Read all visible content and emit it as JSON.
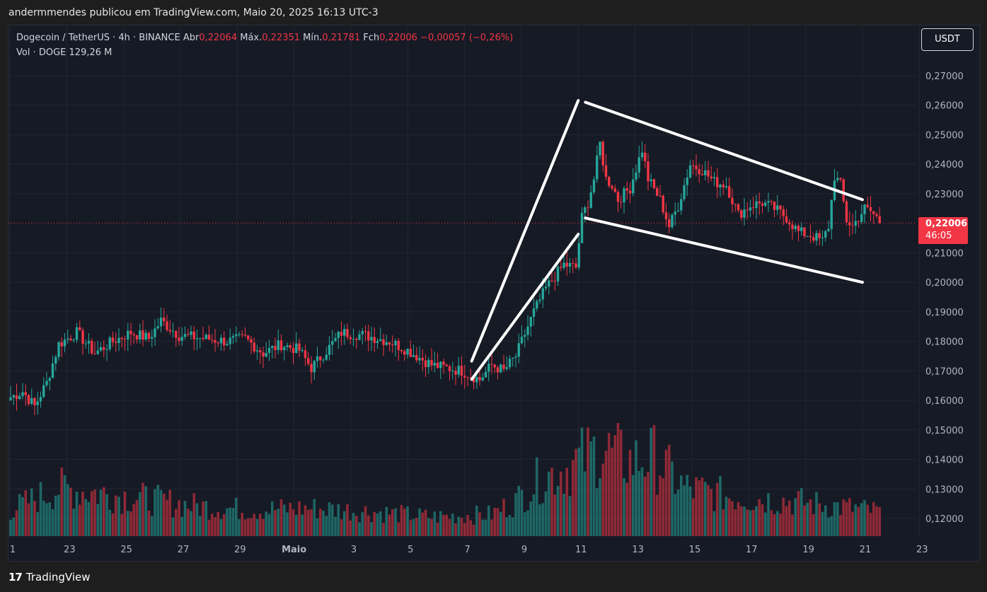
{
  "header": {
    "published": "andermmendes publicou em TradingView.com, Maio 20, 2025 16:13 UTC-3"
  },
  "legend": {
    "symbol": "Dogecoin / TetherUS · 4h · BINANCE",
    "open_label": "Abr",
    "open": "0,22064",
    "high_label": "Máx.",
    "high": "0,22351",
    "low_label": "Mín.",
    "low": "0,21781",
    "close_label": "Fch",
    "close": "0,22006",
    "change": "−0,00057 (−0,26%)",
    "volume_label": "Vol · DOGE",
    "volume": "129,26 M"
  },
  "currency_button": "USDT",
  "last_price": {
    "price": "0,22006",
    "countdown": "46:05"
  },
  "footer": {
    "logo": "17",
    "brand": "TradingView"
  },
  "colors": {
    "up": "#26a69a",
    "down": "#f23645",
    "background": "#161a25",
    "grid": "#232632",
    "drawing": "#ffffff"
  },
  "chart_data": {
    "type": "candlestick",
    "y_ticks": [
      "0,27000",
      "0,26000",
      "0,25000",
      "0,24000",
      "0,23000",
      "0,21000",
      "0,20000",
      "0,19000",
      "0,18000",
      "0,17000",
      "0,16000",
      "0,15000",
      "0,14000",
      "0,13000",
      "0,12000"
    ],
    "x_ticks": [
      "1",
      "23",
      "25",
      "27",
      "29",
      "Maio",
      "3",
      "5",
      "7",
      "9",
      "11",
      "13",
      "15",
      "17",
      "19",
      "21",
      "23"
    ],
    "current_price": 0.22006,
    "anchors": [
      [
        0,
        0.161
      ],
      [
        4,
        0.163
      ],
      [
        8,
        0.158
      ],
      [
        12,
        0.166
      ],
      [
        16,
        0.179
      ],
      [
        22,
        0.183
      ],
      [
        28,
        0.176
      ],
      [
        34,
        0.18
      ],
      [
        40,
        0.183
      ],
      [
        46,
        0.181
      ],
      [
        50,
        0.187
      ],
      [
        56,
        0.182
      ],
      [
        64,
        0.181
      ],
      [
        72,
        0.18
      ],
      [
        78,
        0.181
      ],
      [
        84,
        0.176
      ],
      [
        90,
        0.179
      ],
      [
        96,
        0.177
      ],
      [
        100,
        0.171
      ],
      [
        106,
        0.178
      ],
      [
        110,
        0.183
      ],
      [
        118,
        0.182
      ],
      [
        126,
        0.18
      ],
      [
        132,
        0.177
      ],
      [
        140,
        0.172
      ],
      [
        150,
        0.17
      ],
      [
        156,
        0.167
      ],
      [
        160,
        0.172
      ],
      [
        164,
        0.17
      ],
      [
        168,
        0.175
      ],
      [
        174,
        0.19
      ],
      [
        178,
        0.198
      ],
      [
        184,
        0.206
      ],
      [
        188,
        0.205
      ],
      [
        190,
        0.222
      ],
      [
        192,
        0.227
      ],
      [
        194,
        0.235
      ],
      [
        196,
        0.247
      ],
      [
        198,
        0.235
      ],
      [
        200,
        0.233
      ],
      [
        202,
        0.228
      ],
      [
        206,
        0.232
      ],
      [
        210,
        0.245
      ],
      [
        212,
        0.235
      ],
      [
        216,
        0.228
      ],
      [
        219,
        0.219
      ],
      [
        222,
        0.226
      ],
      [
        226,
        0.24
      ],
      [
        230,
        0.238
      ],
      [
        234,
        0.234
      ],
      [
        238,
        0.233
      ],
      [
        242,
        0.223
      ],
      [
        246,
        0.226
      ],
      [
        250,
        0.227
      ],
      [
        254,
        0.225
      ],
      [
        258,
        0.222
      ],
      [
        262,
        0.217
      ],
      [
        266,
        0.216
      ],
      [
        270,
        0.214
      ],
      [
        272,
        0.219
      ],
      [
        274,
        0.236
      ],
      [
        276,
        0.233
      ],
      [
        278,
        0.221
      ],
      [
        280,
        0.219
      ],
      [
        282,
        0.222
      ],
      [
        284,
        0.225
      ],
      [
        286,
        0.224
      ],
      [
        289,
        0.221
      ]
    ],
    "volume_anchors": [
      [
        0,
        0.3
      ],
      [
        16,
        0.55
      ],
      [
        40,
        0.45
      ],
      [
        60,
        0.35
      ],
      [
        80,
        0.3
      ],
      [
        100,
        0.32
      ],
      [
        120,
        0.28
      ],
      [
        140,
        0.22
      ],
      [
        160,
        0.25
      ],
      [
        168,
        0.4
      ],
      [
        176,
        0.65
      ],
      [
        186,
        0.8
      ],
      [
        196,
        1.0
      ],
      [
        206,
        0.85
      ],
      [
        214,
        0.9
      ],
      [
        224,
        0.55
      ],
      [
        240,
        0.45
      ],
      [
        260,
        0.4
      ],
      [
        280,
        0.32
      ],
      [
        289,
        0.28
      ]
    ],
    "trendlines": [
      {
        "from": [
          "7",
          0.1733
        ],
        "to": [
          "11",
          0.2616
        ]
      },
      {
        "from": [
          "7",
          0.1671
        ],
        "to": [
          "11",
          0.2163
        ]
      },
      {
        "from": [
          "11",
          0.261
        ],
        "to": [
          "21",
          0.228
        ]
      },
      {
        "from": [
          "11",
          0.2218
        ],
        "to": [
          "21",
          0.2
        ]
      }
    ]
  }
}
